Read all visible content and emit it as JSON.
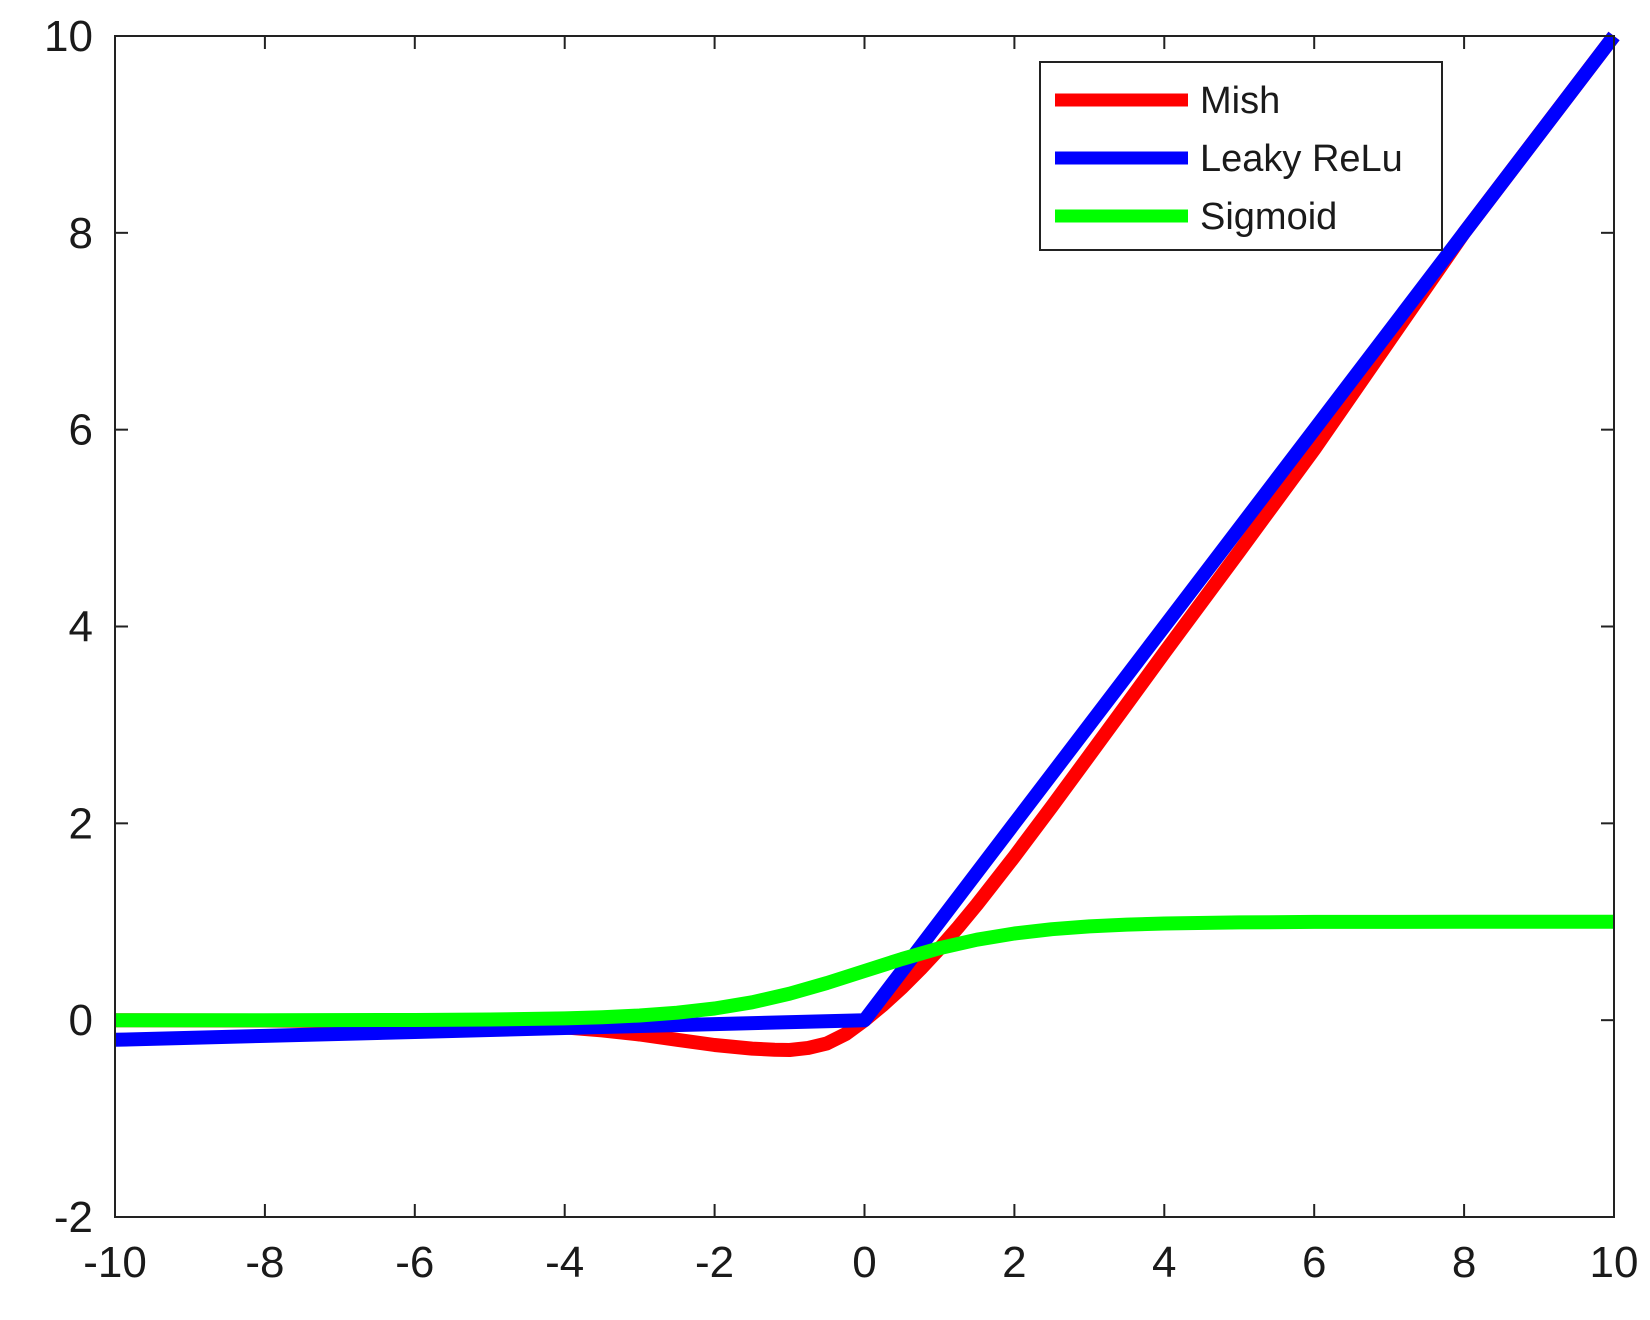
{
  "chart_data": {
    "type": "line",
    "title": "",
    "xlabel": "",
    "ylabel": "",
    "xlim": [
      -10,
      10
    ],
    "ylim": [
      -2,
      10
    ],
    "xticks": [
      -10,
      -8,
      -6,
      -4,
      -2,
      0,
      2,
      4,
      6,
      8,
      10
    ],
    "yticks": [
      -2,
      0,
      2,
      4,
      6,
      8,
      10
    ],
    "grid": false,
    "legend_position": "top-right",
    "series": [
      {
        "name": "Mish",
        "color": "#ff0000",
        "x": [
          -10,
          -8,
          -6,
          -5,
          -4,
          -3.5,
          -3,
          -2.5,
          -2,
          -1.5,
          -1.2,
          -1,
          -0.75,
          -0.5,
          -0.25,
          0,
          0.25,
          0.5,
          0.75,
          1,
          1.25,
          1.5,
          2,
          2.5,
          3,
          3.5,
          4,
          5,
          6,
          7,
          8,
          9,
          10
        ],
        "y": [
          0,
          -0.003,
          -0.015,
          -0.034,
          -0.073,
          -0.104,
          -0.146,
          -0.199,
          -0.252,
          -0.289,
          -0.3,
          -0.303,
          -0.282,
          -0.236,
          -0.141,
          0,
          0.157,
          0.331,
          0.522,
          0.727,
          0.945,
          1.174,
          1.663,
          2.172,
          2.689,
          3.209,
          3.734,
          4.763,
          5.8,
          6.9,
          8.0,
          9.0,
          10.0
        ]
      },
      {
        "name": "Leaky ReLu",
        "color": "#0000ff",
        "x": [
          -10,
          -8,
          -6,
          -4,
          -2,
          0,
          2,
          4,
          6,
          8,
          10
        ],
        "y": [
          -0.2,
          -0.16,
          -0.12,
          -0.08,
          -0.04,
          0,
          2,
          4,
          6,
          8,
          10
        ]
      },
      {
        "name": "Sigmoid",
        "color": "#00ff00",
        "x": [
          -10,
          -8,
          -6,
          -5,
          -4,
          -3.5,
          -3,
          -2.5,
          -2,
          -1.5,
          -1,
          -0.5,
          0,
          0.5,
          1,
          1.5,
          2,
          2.5,
          3,
          3.5,
          4,
          5,
          6,
          8,
          10
        ],
        "y": [
          0,
          0,
          0.002,
          0.007,
          0.018,
          0.029,
          0.047,
          0.076,
          0.119,
          0.182,
          0.269,
          0.378,
          0.5,
          0.622,
          0.731,
          0.818,
          0.881,
          0.924,
          0.953,
          0.971,
          0.982,
          0.993,
          0.998,
          1,
          1
        ]
      }
    ]
  }
}
